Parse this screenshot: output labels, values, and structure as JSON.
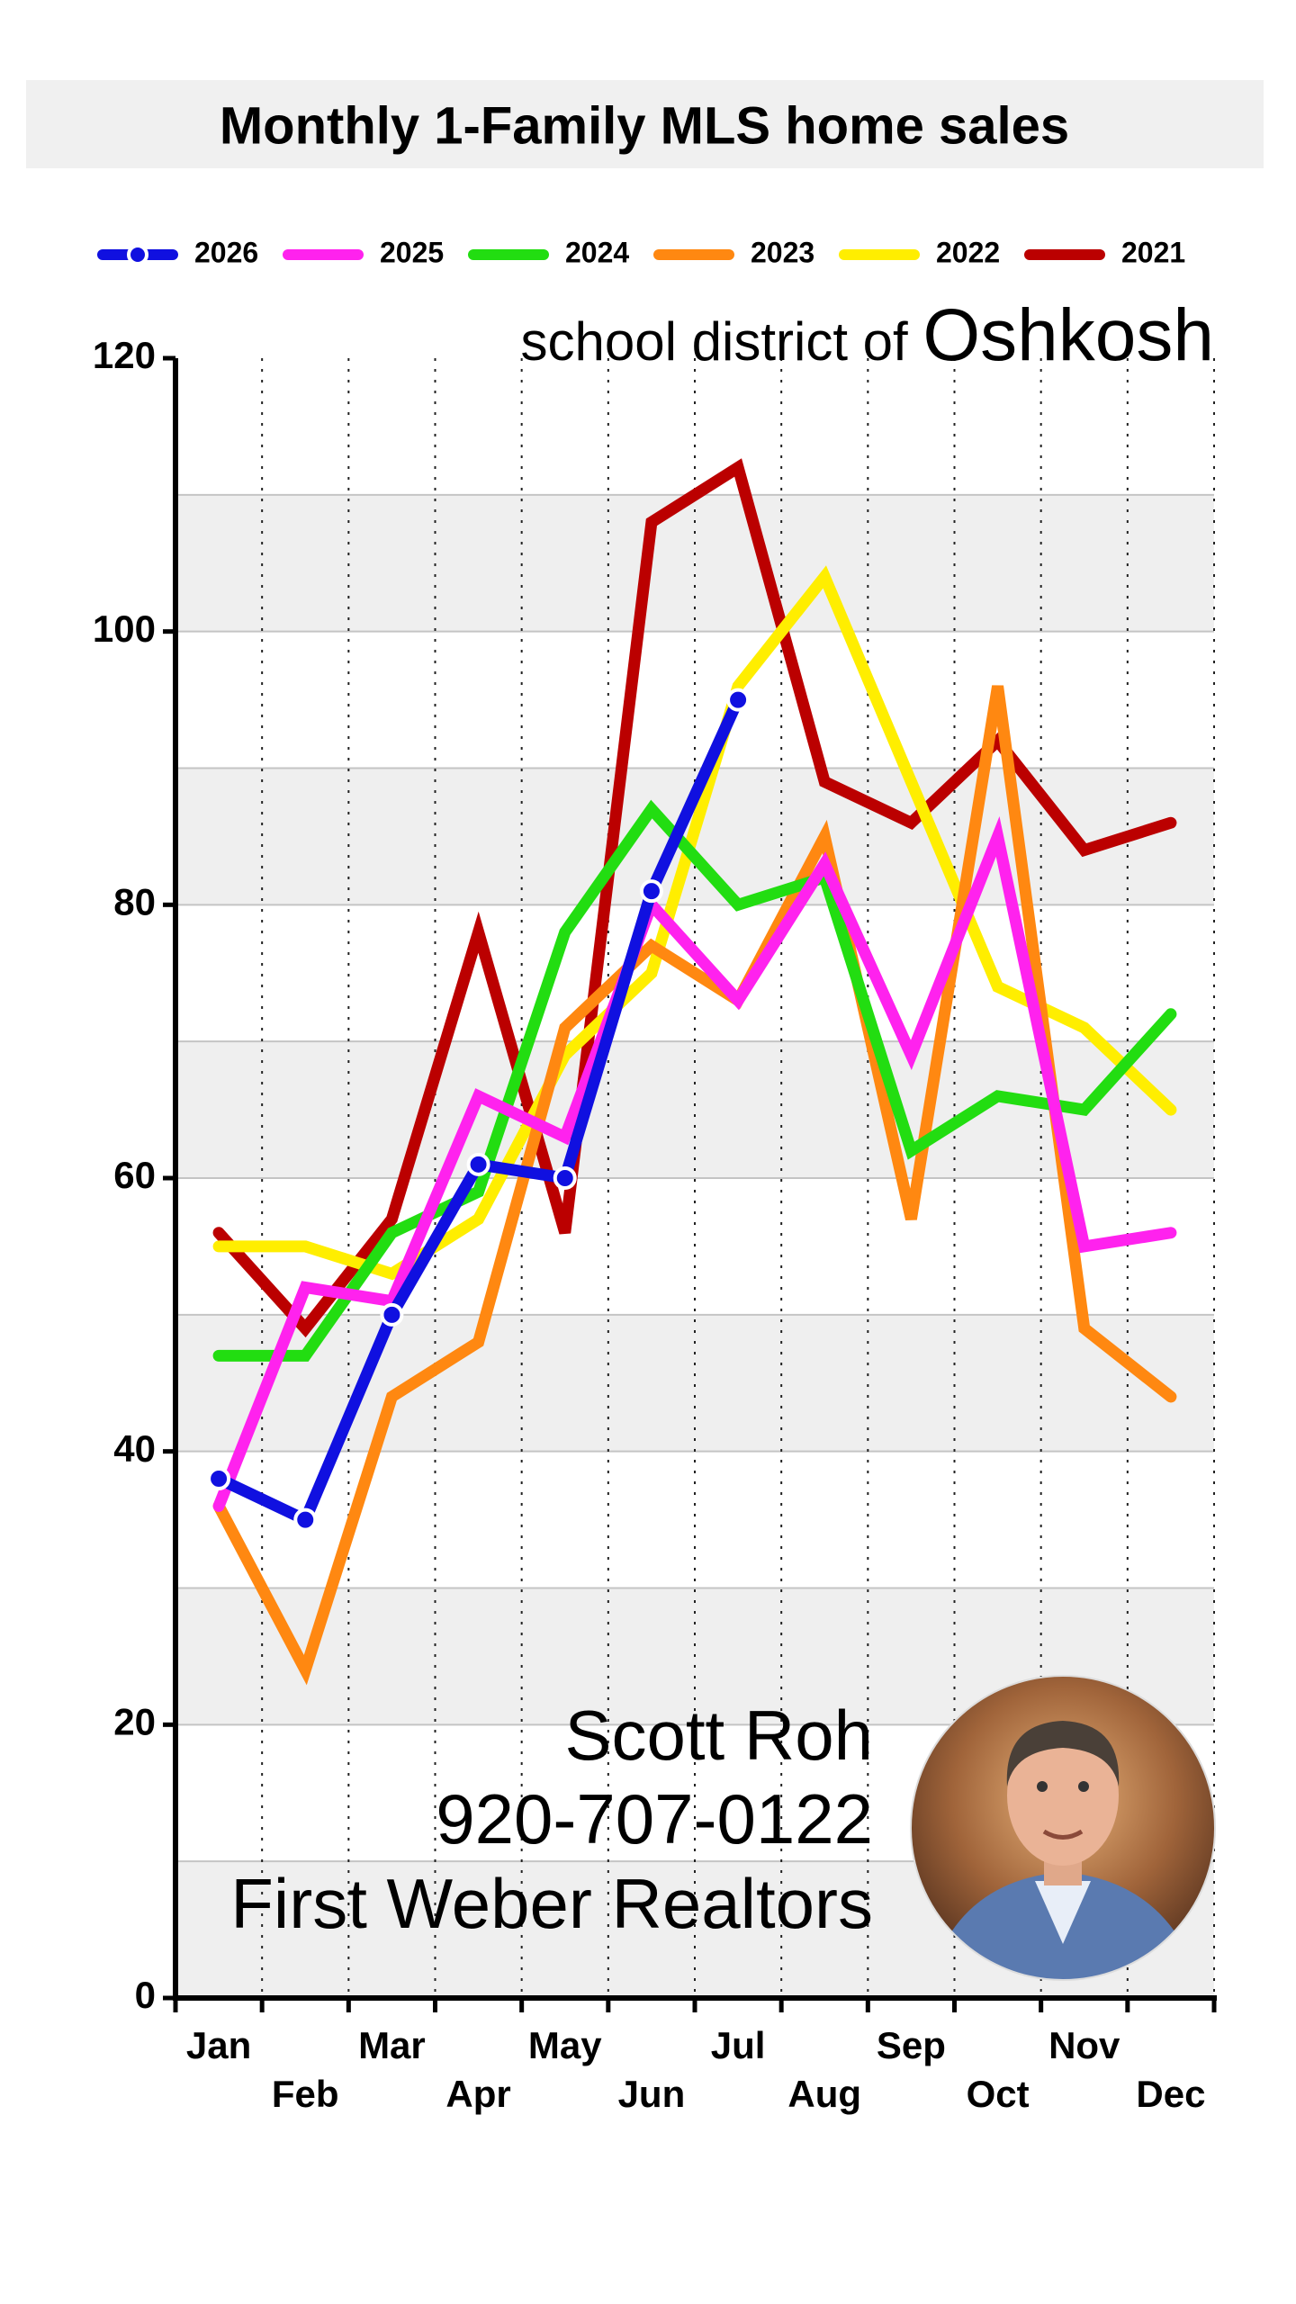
{
  "chart_data": {
    "type": "line",
    "title": "Monthly 1-Family MLS home sales",
    "subtitle": "school district of",
    "subtitle_place": "Oshkosh",
    "categories": [
      "Jan",
      "Feb",
      "Mar",
      "Apr",
      "May",
      "Jun",
      "Jul",
      "Aug",
      "Sep",
      "Oct",
      "Nov",
      "Dec"
    ],
    "series": [
      {
        "name": "2026",
        "color": "#1010e0",
        "markers": true,
        "values": [
          38,
          35,
          50,
          61,
          60,
          81,
          95,
          null,
          null,
          null,
          null,
          null
        ]
      },
      {
        "name": "2025",
        "color": "#ff22ee",
        "values": [
          36,
          52,
          51,
          66,
          63,
          80,
          73,
          83,
          69,
          85,
          55,
          56
        ]
      },
      {
        "name": "2024",
        "color": "#22dd11",
        "values": [
          47,
          47,
          56,
          59,
          78,
          87,
          80,
          82,
          62,
          66,
          65,
          72
        ]
      },
      {
        "name": "2023",
        "color": "#ff8811",
        "values": [
          36,
          24,
          44,
          48,
          71,
          77,
          73,
          85,
          57,
          96,
          49,
          44
        ]
      },
      {
        "name": "2022",
        "color": "#ffee00",
        "values": [
          55,
          55,
          53,
          57,
          69,
          75,
          96,
          104,
          89,
          74,
          71,
          65
        ]
      },
      {
        "name": "2021",
        "color": "#bb0000",
        "values": [
          56,
          49,
          57,
          78,
          56,
          108,
          112,
          89,
          86,
          92,
          84,
          86
        ]
      }
    ],
    "ylim": [
      0,
      120
    ],
    "yticks": [
      0,
      20,
      40,
      60,
      80,
      100,
      120
    ],
    "ygrid": [
      10,
      20,
      30,
      40,
      50,
      60,
      70,
      80,
      90,
      100,
      110
    ],
    "shaded_bands": [
      [
        0,
        10
      ],
      [
        20,
        30
      ],
      [
        40,
        50
      ],
      [
        60,
        70
      ],
      [
        80,
        90
      ],
      [
        100,
        110
      ]
    ],
    "grid": true
  },
  "agent": {
    "name": "Scott Roh",
    "phone": "920-707-0122",
    "company": "First Weber Realtors"
  }
}
